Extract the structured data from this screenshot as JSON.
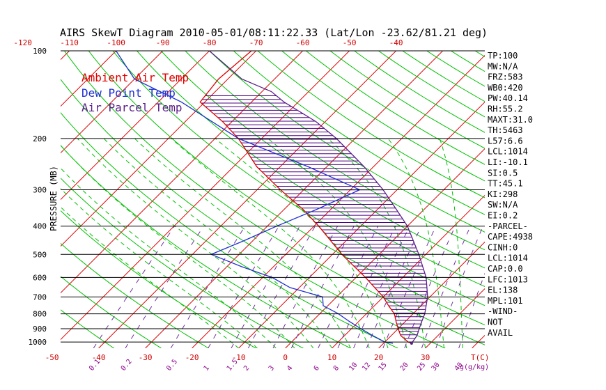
{
  "colors": {
    "ambient": "#e00000",
    "dewpoint": "#1f2fd0",
    "parcel": "#5a1f8a",
    "isotherm": "#e00000",
    "dry_adiabat": "#00c000",
    "moist_adiabat": "#00c000",
    "mixing_ratio": "#7030a0",
    "isobar": "#000000",
    "hatch": "#4b0082"
  },
  "chart_data": {
    "type": "line",
    "title": "AIRS SkewT Diagram 2010-05-01/08:11:22.33 (Lat/Lon -23.62/81.21 deg)",
    "ylabel": "PRESSURE (MB)",
    "xlabel": "T(C)",
    "mixing_ratio_label": "g(g/kg)",
    "log_pressure_axis": true,
    "pressure_range": [
      1050,
      100
    ],
    "pressure_ticks": [
      100,
      200,
      300,
      400,
      500,
      600,
      700,
      800,
      900,
      1000
    ],
    "top_temperature_ticks": [
      -120,
      -110,
      -100,
      -90,
      -80,
      -70,
      -60,
      -50,
      -40
    ],
    "bottom_temperature_ticks": [
      -50,
      -40,
      -30,
      -20,
      -10,
      0,
      10,
      20,
      30
    ],
    "mixing_ratio_ticks": [
      "0.1",
      "0.2",
      "0.5",
      "1",
      "1.5",
      "2",
      "3",
      "4",
      "6",
      "8",
      "10",
      "12",
      "15",
      "20",
      "25",
      "30",
      "40"
    ],
    "legend": [
      "Ambient Air Temp",
      "Dew Point Temp",
      "Air Parcel Temp"
    ],
    "series": [
      {
        "name": "Ambient Air Temp",
        "points": [
          [
            1010,
            26
          ],
          [
            1000,
            25
          ],
          [
            950,
            22
          ],
          [
            900,
            20
          ],
          [
            850,
            18
          ],
          [
            800,
            16
          ],
          [
            750,
            13
          ],
          [
            700,
            10
          ],
          [
            600,
            2
          ],
          [
            500,
            -8
          ],
          [
            400,
            -19
          ],
          [
            350,
            -26
          ],
          [
            300,
            -35
          ],
          [
            250,
            -45
          ],
          [
            200,
            -55
          ],
          [
            175,
            -62
          ],
          [
            150,
            -71
          ],
          [
            125,
            -72
          ],
          [
            100,
            -71
          ]
        ]
      },
      {
        "name": "Dew Point Temp",
        "points": [
          [
            1010,
            22
          ],
          [
            1000,
            20
          ],
          [
            950,
            16
          ],
          [
            900,
            12
          ],
          [
            850,
            8
          ],
          [
            800,
            4
          ],
          [
            750,
            -1
          ],
          [
            700,
            -3
          ],
          [
            650,
            -12
          ],
          [
            600,
            -18
          ],
          [
            550,
            -27
          ],
          [
            500,
            -36
          ],
          [
            450,
            -32
          ],
          [
            400,
            -28
          ],
          [
            350,
            -23
          ],
          [
            300,
            -18
          ],
          [
            250,
            -34
          ],
          [
            200,
            -55
          ],
          [
            150,
            -75
          ],
          [
            125,
            -90
          ],
          [
            100,
            -100
          ]
        ]
      },
      {
        "name": "Air Parcel Temp",
        "points": [
          [
            1010,
            26
          ],
          [
            950,
            25.5
          ],
          [
            900,
            24.5
          ],
          [
            850,
            23.5
          ],
          [
            800,
            22.5
          ],
          [
            700,
            19.5
          ],
          [
            600,
            15
          ],
          [
            500,
            8.5
          ],
          [
            400,
            0
          ],
          [
            350,
            -6
          ],
          [
            300,
            -13
          ],
          [
            250,
            -22
          ],
          [
            200,
            -34
          ],
          [
            175,
            -42
          ],
          [
            150,
            -53
          ],
          [
            138,
            -58
          ],
          [
            125,
            -67
          ],
          [
            100,
            -80
          ]
        ]
      }
    ],
    "cape_shading": "between Air Parcel Temp and Ambient Air Temp, 1013 mb to 138 mb"
  },
  "stats": [
    "TP:100",
    "MW:N/A",
    "FRZ:583",
    "WB0:420",
    "PW:40.14",
    "RH:55.2",
    "MAXT:31.0",
    "TH:5463",
    "L57:6.6",
    "LCL:1014",
    "LI:-10.1",
    "SI:0.5",
    "TT:45.1",
    "KI:298",
    "SW:N/A",
    "EI:0.2",
    "-PARCEL-",
    "CAPE:4938",
    "CINH:0",
    "LCL:1014",
    "CAP:0.0",
    "LFC:1013",
    "EL:138",
    "MPL:101",
    "-WIND-",
    "NOT",
    "AVAIL"
  ]
}
